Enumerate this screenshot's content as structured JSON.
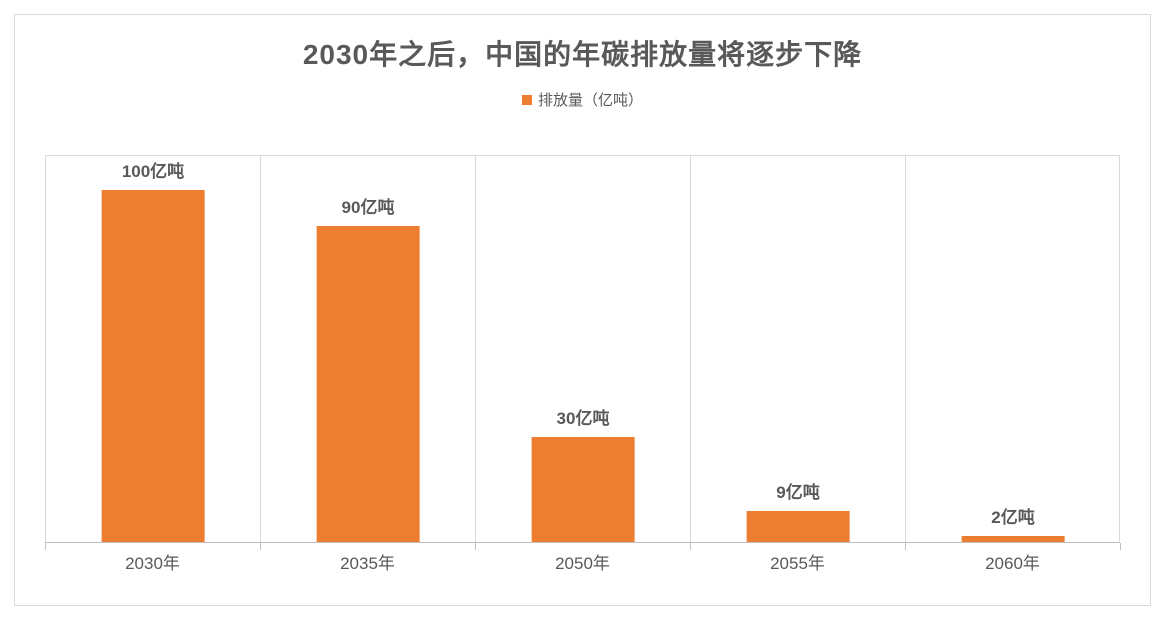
{
  "chart": {
    "type": "bar",
    "title": "2030年之后，中国的年碳排放量将逐步下降",
    "title_fontsize": 28,
    "title_color": "#595959",
    "legend": {
      "label": "排放量（亿吨）",
      "swatch_color": "#ed7d31",
      "fontsize": 15,
      "text_color": "#595959"
    },
    "categories": [
      "2030年",
      "2035年",
      "2050年",
      "2055年",
      "2060年"
    ],
    "values": [
      100,
      90,
      30,
      9,
      2
    ],
    "value_labels": [
      "100亿吨",
      "90亿吨",
      "30亿吨",
      "9亿吨",
      "2亿吨"
    ],
    "bar_color": "#ed7d31",
    "bar_width_pct": 48,
    "ylim": [
      0,
      110
    ],
    "background_color": "#ffffff",
    "border_color": "#d9d9d9",
    "axis_line_color": "#bfbfbf",
    "label_color": "#595959",
    "label_fontsize": 17,
    "value_label_fontsize": 17,
    "value_label_fontweight": "bold"
  }
}
